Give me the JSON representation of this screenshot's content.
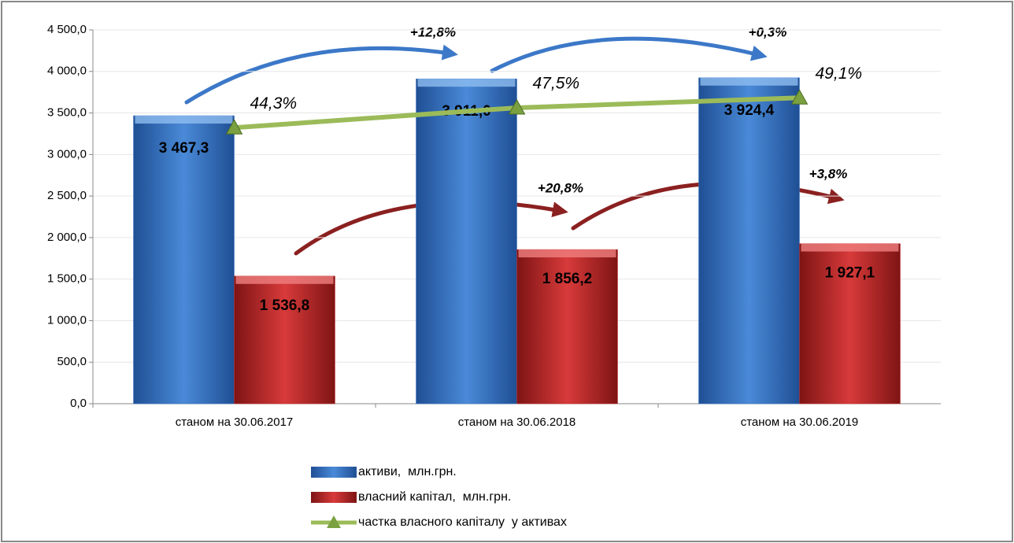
{
  "chart_data": {
    "type": "bar",
    "categories": [
      "станом на 30.06.2017",
      "станом на 30.06.2018",
      "станом на 30.06.2019"
    ],
    "series": [
      {
        "name": "активи,  млн.грн.",
        "color": "#3c78c8",
        "values": [
          3467.3,
          3911.0,
          3924.4
        ],
        "value_labels": [
          "3 467,3",
          "3 911,0",
          "3 924,4"
        ]
      },
      {
        "name": "власний капітал,  млн.грн.",
        "color": "#c83232",
        "values": [
          1536.8,
          1856.2,
          1927.1
        ],
        "value_labels": [
          "1 536,8",
          "1 856,2",
          "1 927,1"
        ]
      },
      {
        "name": "частка власного капіталу  у активах",
        "color": "#9bbb59",
        "type": "line",
        "axis": "y2",
        "values": [
          44.3,
          47.5,
          49.1
        ],
        "value_labels": [
          "44,3%",
          "47,5%",
          "49,1%"
        ]
      }
    ],
    "annotations": [
      "+12,8%",
      "+0,3%",
      "+20,8%",
      "+3,8%"
    ],
    "ylim": [
      0,
      4500
    ],
    "yticks": [
      {
        "value": 0,
        "label": "0,0"
      },
      {
        "value": 500,
        "label": "500,0"
      },
      {
        "value": 1000,
        "label": "1 000,0"
      },
      {
        "value": 1500,
        "label": "1 500,0"
      },
      {
        "value": 2000,
        "label": "2 000,0"
      },
      {
        "value": 2500,
        "label": "2 500,0"
      },
      {
        "value": 3000,
        "label": "3 000,0"
      },
      {
        "value": 3500,
        "label": "3 500,0"
      },
      {
        "value": 4000,
        "label": "4 000,0"
      },
      {
        "value": 4500,
        "label": "4 500,0"
      }
    ],
    "y2lim": [
      0,
      60
    ],
    "grid": true,
    "legend": "bottom"
  }
}
